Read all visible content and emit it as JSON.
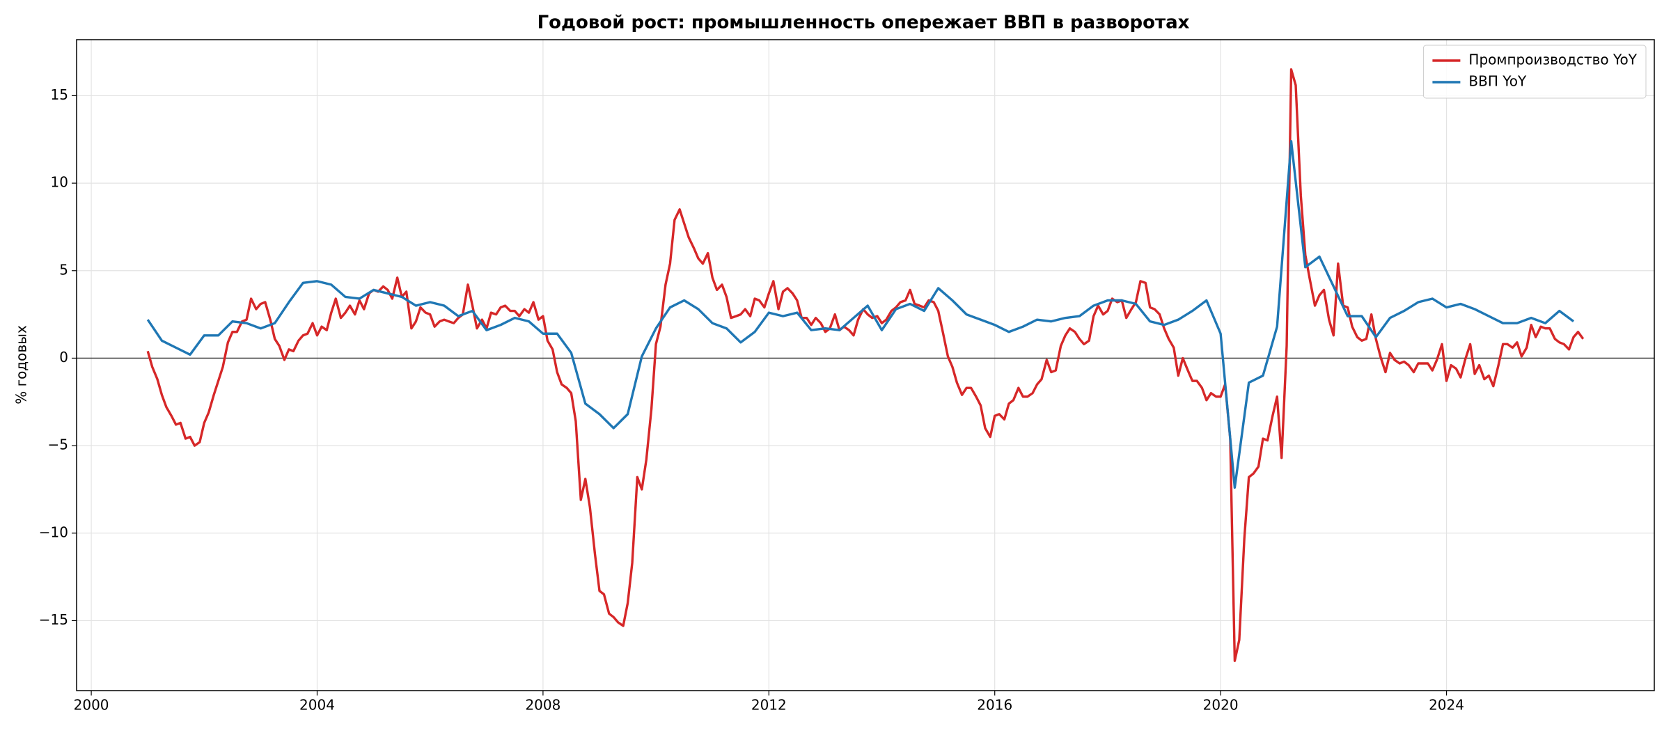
{
  "chart_data": {
    "type": "line",
    "title": "Годовой рост: промышленность опережает ВВП в разворотах",
    "ylabel": "% годовых",
    "xlim": [
      1999.74,
      2027.68
    ],
    "ylim": [
      -19.0,
      18.2
    ],
    "xticks": [
      2000,
      2004,
      2008,
      2012,
      2016,
      2020,
      2024
    ],
    "yticks": [
      {
        "value": -15,
        "label": "−15"
      },
      {
        "value": -10,
        "label": "−10"
      },
      {
        "value": -5,
        "label": "−5"
      },
      0,
      5,
      10,
      15
    ],
    "grid": true,
    "axhline": 0,
    "legend": "upper right",
    "series": [
      {
        "name": "Промпроизводство YoY",
        "color": "#d62728",
        "x": [
          2001.0,
          2001.08,
          2001.17,
          2001.25,
          2001.33,
          2001.42,
          2001.5,
          2001.58,
          2001.67,
          2001.75,
          2001.83,
          2001.92,
          2002.0,
          2002.08,
          2002.17,
          2002.25,
          2002.33,
          2002.42,
          2002.5,
          2002.58,
          2002.67,
          2002.75,
          2002.83,
          2002.92,
          2003.0,
          2003.08,
          2003.17,
          2003.25,
          2003.33,
          2003.42,
          2003.5,
          2003.58,
          2003.67,
          2003.75,
          2003.83,
          2003.92,
          2004.0,
          2004.08,
          2004.17,
          2004.25,
          2004.33,
          2004.42,
          2004.5,
          2004.58,
          2004.67,
          2004.75,
          2004.83,
          2004.92,
          2005.0,
          2005.08,
          2005.17,
          2005.25,
          2005.33,
          2005.42,
          2005.5,
          2005.58,
          2005.67,
          2005.75,
          2005.83,
          2005.92,
          2006.0,
          2006.08,
          2006.17,
          2006.25,
          2006.33,
          2006.42,
          2006.5,
          2006.58,
          2006.67,
          2006.75,
          2006.83,
          2006.92,
          2007.0,
          2007.08,
          2007.17,
          2007.25,
          2007.33,
          2007.42,
          2007.5,
          2007.58,
          2007.67,
          2007.75,
          2007.83,
          2007.92,
          2008.0,
          2008.08,
          2008.17,
          2008.25,
          2008.33,
          2008.42,
          2008.5,
          2008.58,
          2008.67,
          2008.75,
          2008.83,
          2008.92,
          2009.0,
          2009.08,
          2009.17,
          2009.25,
          2009.33,
          2009.42,
          2009.5,
          2009.58,
          2009.67,
          2009.75,
          2009.83,
          2009.92,
          2010.0,
          2010.08,
          2010.17,
          2010.25,
          2010.33,
          2010.42,
          2010.5,
          2010.58,
          2010.67,
          2010.75,
          2010.83,
          2010.92,
          2011.0,
          2011.08,
          2011.17,
          2011.25,
          2011.33,
          2011.42,
          2011.5,
          2011.58,
          2011.67,
          2011.75,
          2011.83,
          2011.92,
          2012.0,
          2012.08,
          2012.17,
          2012.25,
          2012.33,
          2012.42,
          2012.5,
          2012.58,
          2012.67,
          2012.75,
          2012.83,
          2012.92,
          2013.0,
          2013.08,
          2013.17,
          2013.25,
          2013.33,
          2013.42,
          2013.5,
          2013.58,
          2013.67,
          2013.75,
          2013.83,
          2013.92,
          2014.0,
          2014.08,
          2014.17,
          2014.25,
          2014.33,
          2014.42,
          2014.5,
          2014.58,
          2014.67,
          2014.75,
          2014.83,
          2014.92,
          2015.0,
          2015.08,
          2015.17,
          2015.25,
          2015.33,
          2015.42,
          2015.5,
          2015.58,
          2015.67,
          2015.75,
          2015.83,
          2015.92,
          2016.0,
          2016.08,
          2016.17,
          2016.25,
          2016.33,
          2016.42,
          2016.5,
          2016.58,
          2016.67,
          2016.75,
          2016.83,
          2016.92,
          2017.0,
          2017.08,
          2017.17,
          2017.25,
          2017.33,
          2017.42,
          2017.5,
          2017.58,
          2017.67,
          2017.75,
          2017.83,
          2017.92,
          2018.0,
          2018.08,
          2018.17,
          2018.25,
          2018.33,
          2018.42,
          2018.5,
          2018.58,
          2018.67,
          2018.75,
          2018.83,
          2018.92,
          2019.0,
          2019.08,
          2019.17,
          2019.25,
          2019.33,
          2019.42,
          2019.5,
          2019.58,
          2019.67,
          2019.75,
          2019.83,
          2019.92,
          2020.0,
          2020.08,
          2020.17,
          2020.25,
          2020.33,
          2020.42,
          2020.5,
          2020.58,
          2020.67,
          2020.75,
          2020.83,
          2020.92,
          2021.0,
          2021.08,
          2021.17,
          2021.25,
          2021.33,
          2021.42,
          2021.5,
          2021.58,
          2021.67,
          2021.75,
          2021.83,
          2021.92,
          2022.0,
          2022.08,
          2022.17,
          2022.25,
          2022.33,
          2022.42,
          2022.5,
          2022.58,
          2022.67,
          2022.75,
          2022.83,
          2022.92,
          2023.0,
          2023.08,
          2023.17,
          2023.25,
          2023.33,
          2023.42,
          2023.5,
          2023.58,
          2023.67,
          2023.75,
          2023.83,
          2023.92,
          2024.0,
          2024.08,
          2024.17,
          2024.25,
          2024.33,
          2024.42,
          2024.5,
          2024.58,
          2024.67,
          2024.75,
          2024.83,
          2024.92,
          2025.0,
          2025.08,
          2025.17,
          2025.25,
          2025.33,
          2025.42,
          2025.5,
          2025.58,
          2025.67,
          2025.75,
          2025.83,
          2025.92,
          2026.0,
          2026.08,
          2026.17,
          2026.25,
          2026.33,
          2026.42
        ],
        "values": [
          0.4,
          -0.5,
          -1.2,
          -2.1,
          -2.8,
          -3.3,
          -3.8,
          -3.7,
          -4.6,
          -4.5,
          -5.0,
          -4.8,
          -3.7,
          -3.1,
          -2.1,
          -1.3,
          -0.5,
          0.9,
          1.5,
          1.5,
          2.1,
          2.2,
          3.4,
          2.8,
          3.1,
          3.2,
          2.2,
          1.1,
          0.7,
          -0.1,
          0.5,
          0.4,
          1.0,
          1.3,
          1.4,
          2.0,
          1.3,
          1.8,
          1.6,
          2.6,
          3.4,
          2.3,
          2.6,
          3.0,
          2.5,
          3.3,
          2.8,
          3.7,
          3.9,
          3.8,
          4.1,
          3.9,
          3.4,
          4.6,
          3.5,
          3.8,
          1.7,
          2.1,
          2.9,
          2.6,
          2.5,
          1.8,
          2.1,
          2.2,
          2.1,
          2.0,
          2.3,
          2.5,
          4.2,
          3.0,
          1.7,
          2.2,
          1.7,
          2.6,
          2.5,
          2.9,
          3.0,
          2.7,
          2.7,
          2.4,
          2.8,
          2.6,
          3.2,
          2.2,
          2.4,
          1.0,
          0.5,
          -0.8,
          -1.5,
          -1.7,
          -2.0,
          -3.6,
          -8.1,
          -6.9,
          -8.5,
          -11.2,
          -13.3,
          -13.5,
          -14.6,
          -14.8,
          -15.1,
          -15.3,
          -14.0,
          -11.7,
          -6.8,
          -7.5,
          -5.8,
          -2.9,
          0.8,
          1.8,
          4.2,
          5.4,
          7.9,
          8.5,
          7.7,
          6.9,
          6.3,
          5.7,
          5.4,
          6.0,
          4.6,
          3.9,
          4.2,
          3.5,
          2.3,
          2.4,
          2.5,
          2.8,
          2.4,
          3.4,
          3.3,
          2.9,
          3.7,
          4.4,
          2.8,
          3.8,
          4.0,
          3.7,
          3.3,
          2.3,
          2.3,
          1.9,
          2.3,
          2.0,
          1.5,
          1.7,
          2.5,
          1.6,
          1.8,
          1.6,
          1.3,
          2.2,
          2.8,
          2.5,
          2.3,
          2.4,
          2.0,
          2.2,
          2.7,
          2.9,
          3.2,
          3.3,
          3.9,
          3.1,
          3.0,
          2.9,
          3.3,
          3.2,
          2.7,
          1.5,
          0.1,
          -0.5,
          -1.4,
          -2.1,
          -1.7,
          -1.7,
          -2.2,
          -2.7,
          -4.0,
          -4.5,
          -3.3,
          -3.2,
          -3.5,
          -2.6,
          -2.4,
          -1.7,
          -2.2,
          -2.2,
          -2.0,
          -1.5,
          -1.2,
          -0.1,
          -0.8,
          -0.7,
          0.7,
          1.3,
          1.7,
          1.5,
          1.1,
          0.8,
          1.0,
          2.4,
          3.0,
          2.5,
          2.7,
          3.4,
          3.2,
          3.3,
          2.3,
          2.8,
          3.2,
          4.4,
          4.3,
          2.9,
          2.8,
          2.5,
          1.7,
          1.1,
          0.6,
          -1.0,
          0.0,
          -0.7,
          -1.3,
          -1.3,
          -1.7,
          -2.4,
          -2.0,
          -2.2,
          -2.2,
          -1.5,
          -4.6,
          -17.3,
          -16.1,
          -10.3,
          -6.8,
          -6.6,
          -6.2,
          -4.6,
          -4.7,
          -3.3,
          -2.2,
          -5.7,
          0.7,
          16.5,
          15.6,
          9.3,
          5.9,
          4.5,
          3.0,
          3.6,
          3.9,
          2.2,
          1.3,
          5.4,
          3.0,
          2.9,
          1.8,
          1.2,
          1.0,
          1.1,
          2.5,
          1.1,
          0.1,
          -0.8,
          0.3,
          -0.1,
          -0.3,
          -0.2,
          -0.4,
          -0.8,
          -0.3,
          -0.3,
          -0.3,
          -0.7,
          -0.1,
          0.8,
          -1.3,
          -0.4,
          -0.6,
          -1.1,
          -0.1,
          0.8,
          -0.9,
          -0.4,
          -1.2,
          -1.0,
          -1.6,
          -0.4,
          0.8,
          0.8,
          0.6,
          0.9,
          0.1,
          0.6,
          1.9,
          1.2,
          1.8,
          1.7,
          1.7,
          1.1,
          0.9,
          0.8,
          0.5,
          1.2,
          1.5,
          1.1
        ]
      },
      {
        "name": "ВВП YoY",
        "color": "#1f77b4",
        "x": [
          2001.0,
          2001.25,
          2001.5,
          2001.75,
          2002.0,
          2002.25,
          2002.5,
          2002.75,
          2003.0,
          2003.25,
          2003.5,
          2003.75,
          2004.0,
          2004.25,
          2004.5,
          2004.75,
          2005.0,
          2005.25,
          2005.5,
          2005.75,
          2006.0,
          2006.25,
          2006.5,
          2006.75,
          2007.0,
          2007.25,
          2007.5,
          2007.75,
          2008.0,
          2008.25,
          2008.5,
          2008.75,
          2009.0,
          2009.25,
          2009.5,
          2009.75,
          2010.0,
          2010.25,
          2010.5,
          2010.75,
          2011.0,
          2011.25,
          2011.5,
          2011.75,
          2012.0,
          2012.25,
          2012.5,
          2012.75,
          2013.0,
          2013.25,
          2013.5,
          2013.75,
          2014.0,
          2014.25,
          2014.5,
          2014.75,
          2015.0,
          2015.25,
          2015.5,
          2015.75,
          2016.0,
          2016.25,
          2016.5,
          2016.75,
          2017.0,
          2017.25,
          2017.5,
          2017.75,
          2018.0,
          2018.25,
          2018.5,
          2018.75,
          2019.0,
          2019.25,
          2019.5,
          2019.75,
          2020.0,
          2020.25,
          2020.5,
          2020.75,
          2021.0,
          2021.25,
          2021.5,
          2021.75,
          2022.0,
          2022.25,
          2022.5,
          2022.75,
          2023.0,
          2023.25,
          2023.5,
          2023.75,
          2024.0,
          2024.25,
          2024.5,
          2024.75,
          2025.0,
          2025.25,
          2025.5,
          2025.75,
          2026.0,
          2026.25
        ],
        "values": [
          2.2,
          1.0,
          0.6,
          0.2,
          1.3,
          1.3,
          2.1,
          2.0,
          1.7,
          2.0,
          3.2,
          4.3,
          4.4,
          4.2,
          3.5,
          3.4,
          3.9,
          3.7,
          3.5,
          3.0,
          3.2,
          3.0,
          2.4,
          2.7,
          1.6,
          1.9,
          2.3,
          2.1,
          1.4,
          1.4,
          0.3,
          -2.6,
          -3.2,
          -4.0,
          -3.2,
          0.1,
          1.7,
          2.9,
          3.3,
          2.8,
          2.0,
          1.7,
          0.9,
          1.5,
          2.6,
          2.4,
          2.6,
          1.6,
          1.7,
          1.6,
          2.3,
          3.0,
          1.6,
          2.8,
          3.1,
          2.7,
          4.0,
          3.3,
          2.5,
          2.2,
          1.9,
          1.5,
          1.8,
          2.2,
          2.1,
          2.3,
          2.4,
          3.0,
          3.3,
          3.3,
          3.1,
          2.1,
          1.9,
          2.2,
          2.7,
          3.3,
          1.4,
          -7.4,
          -1.4,
          -1.0,
          1.8,
          12.4,
          5.2,
          5.8,
          4.1,
          2.4,
          2.4,
          1.2,
          2.3,
          2.7,
          3.2,
          3.4,
          2.9,
          3.1,
          2.8,
          2.4,
          2.0,
          2.0,
          2.3,
          2.0,
          2.7,
          2.1
        ]
      }
    ]
  }
}
